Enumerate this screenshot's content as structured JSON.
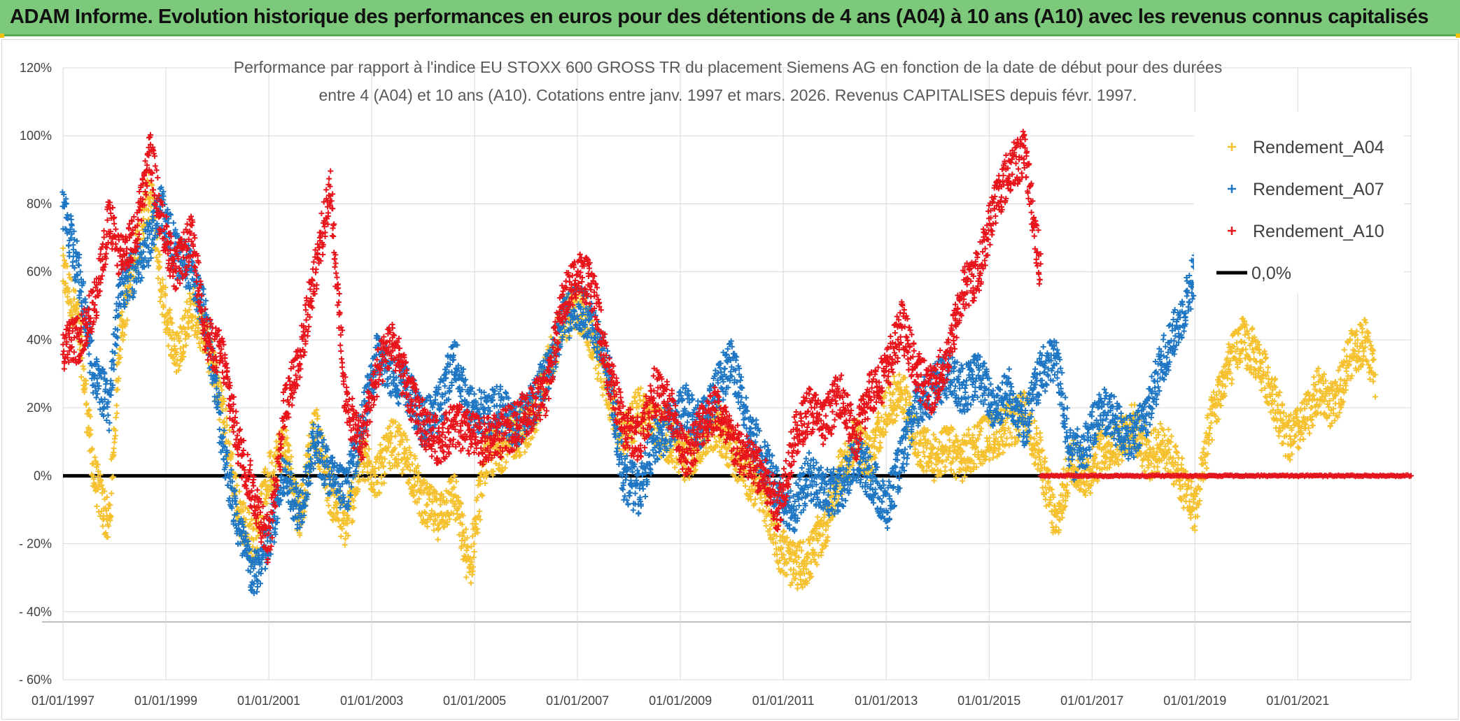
{
  "header": {
    "banner_title": "ADAM Informe. Evolution historique des performances en euros pour des détentions de 4 ans (A04) à 10 ans (A10) avec les revenus connus capitalisés"
  },
  "chart_data": {
    "type": "scatter",
    "title_line1": "Performance par rapport à l'indice EU STOXX 600 GROSS TR  du placement Siemens AG en fonction de la date de début pour des durées",
    "title_line2": "entre 4 (A04) et 10 ans (A10). Cotations entre janv. 1997 et mars. 2026. Revenus CAPITALISES depuis févr. 1997.",
    "xlabel": "",
    "ylabel": "",
    "xlim": [
      1997.0,
      2023.2
    ],
    "ylim": [
      -60,
      120
    ],
    "y_ticks": [
      120,
      100,
      80,
      60,
      40,
      20,
      0,
      -20,
      -40,
      -60
    ],
    "y_tick_labels": [
      "120%",
      "100%",
      "80%",
      "60%",
      "40%",
      "20%",
      "0%",
      "- 20%",
      "- 40%",
      "- 60%"
    ],
    "x_ticks": [
      1997,
      1999,
      2001,
      2003,
      2005,
      2007,
      2009,
      2011,
      2013,
      2015,
      2017,
      2019,
      2021
    ],
    "x_tick_labels": [
      "01/01/1997",
      "01/01/1999",
      "01/01/2001",
      "01/01/2003",
      "01/01/2005",
      "01/01/2007",
      "01/01/2009",
      "01/01/2011",
      "01/01/2013",
      "01/01/2015",
      "01/01/2017",
      "01/01/2019",
      "01/01/2021"
    ],
    "grid": true,
    "legend_position": "top-right",
    "series": [
      {
        "name": "Rendement_A04",
        "color": "#f5c12e",
        "marker": "plus",
        "end_year": 2022.5,
        "x": [
          1997.0,
          1997.3,
          1997.6,
          1997.9,
          1998.1,
          1998.4,
          1998.7,
          1998.9,
          1999.2,
          1999.5,
          1999.8,
          2000.1,
          2000.4,
          2000.7,
          2001.0,
          2001.3,
          2001.6,
          2001.9,
          2002.2,
          2002.5,
          2002.8,
          2003.1,
          2003.4,
          2003.7,
          2004.0,
          2004.3,
          2004.6,
          2004.9,
          2005.2,
          2005.5,
          2005.8,
          2006.1,
          2006.4,
          2006.7,
          2007.0,
          2007.3,
          2007.6,
          2007.9,
          2008.2,
          2008.5,
          2008.8,
          2009.1,
          2009.4,
          2009.7,
          2010.0,
          2010.3,
          2010.6,
          2010.9,
          2011.2,
          2011.5,
          2011.8,
          2012.1,
          2012.4,
          2012.7,
          2013.0,
          2013.3,
          2013.6,
          2013.9,
          2014.2,
          2014.5,
          2014.8,
          2015.1,
          2015.4,
          2015.7,
          2016.0,
          2016.3,
          2016.6,
          2016.9,
          2017.2,
          2017.5,
          2017.8,
          2018.1,
          2018.4,
          2018.7,
          2019.0,
          2019.3,
          2019.6,
          2019.9,
          2020.2,
          2020.5,
          2020.8,
          2021.1,
          2021.4,
          2021.7,
          2022.0,
          2022.3,
          2022.5
        ],
        "y": [
          60,
          45,
          0,
          -15,
          40,
          65,
          85,
          55,
          35,
          50,
          40,
          20,
          -10,
          -20,
          0,
          10,
          -12,
          15,
          -5,
          -15,
          5,
          0,
          10,
          5,
          -8,
          -12,
          -5,
          -28,
          5,
          8,
          12,
          15,
          30,
          45,
          50,
          40,
          25,
          10,
          20,
          15,
          10,
          5,
          10,
          15,
          8,
          0,
          -5,
          -20,
          -27,
          -25,
          -15,
          0,
          10,
          5,
          20,
          25,
          10,
          5,
          8,
          5,
          10,
          12,
          15,
          18,
          5,
          -15,
          5,
          0,
          8,
          10,
          15,
          5,
          10,
          0,
          -10,
          15,
          30,
          40,
          35,
          25,
          10,
          15,
          25,
          20,
          35,
          40,
          30
        ]
      },
      {
        "name": "Rendement_A07",
        "color": "#1f77c4",
        "marker": "plus",
        "end_year": 2019.0,
        "x": [
          1997.0,
          1997.3,
          1997.6,
          1997.9,
          1998.1,
          1998.4,
          1998.7,
          1998.9,
          1999.2,
          1999.5,
          1999.8,
          2000.1,
          2000.4,
          2000.7,
          2001.0,
          2001.3,
          2001.6,
          2001.9,
          2002.2,
          2002.5,
          2002.8,
          2003.1,
          2003.4,
          2003.7,
          2004.0,
          2004.3,
          2004.6,
          2004.9,
          2005.2,
          2005.5,
          2005.8,
          2006.1,
          2006.4,
          2006.7,
          2007.0,
          2007.3,
          2007.6,
          2007.9,
          2008.2,
          2008.5,
          2008.8,
          2009.1,
          2009.4,
          2009.7,
          2010.0,
          2010.3,
          2010.6,
          2010.9,
          2011.2,
          2011.5,
          2011.8,
          2012.1,
          2012.4,
          2012.7,
          2013.0,
          2013.3,
          2013.6,
          2013.9,
          2014.2,
          2014.5,
          2014.8,
          2015.1,
          2015.4,
          2015.7,
          2016.0,
          2016.3,
          2016.6,
          2016.9,
          2017.2,
          2017.5,
          2017.8,
          2018.1,
          2018.4,
          2018.7,
          2019.0
        ],
        "y": [
          80,
          60,
          30,
          20,
          55,
          60,
          70,
          80,
          65,
          60,
          45,
          10,
          -15,
          -30,
          -20,
          0,
          -10,
          10,
          0,
          -5,
          15,
          35,
          30,
          25,
          15,
          20,
          35,
          20,
          18,
          20,
          15,
          20,
          30,
          45,
          50,
          45,
          30,
          0,
          -5,
          10,
          15,
          20,
          15,
          25,
          35,
          15,
          5,
          -5,
          -10,
          0,
          -5,
          -5,
          5,
          0,
          -10,
          5,
          20,
          25,
          30,
          25,
          30,
          20,
          25,
          15,
          30,
          35,
          5,
          10,
          20,
          15,
          10,
          20,
          35,
          45,
          60
        ]
      },
      {
        "name": "Rendement_A10",
        "color": "#e8141b",
        "marker": "plus",
        "end_year": 2016.0,
        "x": [
          1997.0,
          1997.3,
          1997.6,
          1997.9,
          1998.1,
          1998.4,
          1998.7,
          1998.9,
          1999.2,
          1999.5,
          1999.8,
          2000.1,
          2000.4,
          2000.7,
          2001.0,
          2001.3,
          2001.6,
          2001.9,
          2002.2,
          2002.5,
          2002.8,
          2003.1,
          2003.4,
          2003.7,
          2004.0,
          2004.3,
          2004.6,
          2004.9,
          2005.2,
          2005.5,
          2005.8,
          2006.1,
          2006.4,
          2006.7,
          2007.0,
          2007.3,
          2007.6,
          2007.9,
          2008.2,
          2008.5,
          2008.8,
          2009.1,
          2009.4,
          2009.7,
          2010.0,
          2010.3,
          2010.6,
          2010.9,
          2011.2,
          2011.5,
          2011.8,
          2012.1,
          2012.4,
          2012.7,
          2013.0,
          2013.3,
          2013.6,
          2013.9,
          2014.2,
          2014.5,
          2014.8,
          2015.1,
          2015.4,
          2015.7,
          2016.0
        ],
        "y": [
          38,
          40,
          50,
          75,
          65,
          70,
          95,
          75,
          60,
          70,
          40,
          35,
          10,
          -5,
          -20,
          20,
          35,
          60,
          85,
          20,
          10,
          30,
          40,
          25,
          15,
          10,
          15,
          12,
          10,
          12,
          15,
          20,
          25,
          50,
          60,
          55,
          30,
          15,
          10,
          25,
          20,
          5,
          15,
          20,
          10,
          5,
          0,
          -10,
          10,
          20,
          15,
          25,
          10,
          25,
          30,
          45,
          30,
          25,
          35,
          55,
          60,
          80,
          90,
          95,
          60
        ]
      },
      {
        "name": "0,0%",
        "color": "#000000",
        "marker": "line",
        "x": [
          1997.0,
          2023.2
        ],
        "y": [
          0,
          0
        ]
      }
    ],
    "zero_tail": {
      "color": "#e8141b",
      "x": [
        2016.0,
        2023.2
      ],
      "y": [
        0,
        0
      ]
    }
  }
}
